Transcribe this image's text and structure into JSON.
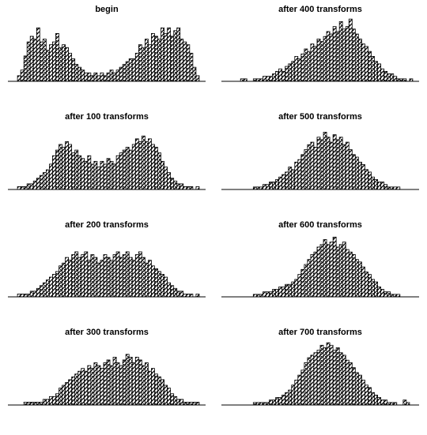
{
  "figure": {
    "layout": "4 rows x 2 columns",
    "background": "#ffffff",
    "bar_fill": "hatched black-and-white",
    "bar_stroke": "#000000"
  },
  "chart_data": [
    {
      "type": "bar",
      "title": "begin",
      "x": [
        3,
        4,
        5,
        6,
        7,
        8,
        9,
        10,
        11,
        12,
        13,
        14,
        15,
        16,
        17,
        18,
        19,
        20,
        21,
        22,
        23,
        24,
        25,
        26,
        27,
        28,
        29,
        30,
        31,
        32,
        33,
        34,
        35,
        36,
        37,
        38,
        39,
        40,
        41,
        42,
        43,
        44,
        45,
        46,
        47,
        48,
        49,
        50,
        51,
        52,
        53,
        54,
        55,
        56,
        57,
        58,
        59
      ],
      "values": [
        2,
        4,
        9,
        14,
        16,
        15,
        19,
        14,
        15,
        11,
        13,
        14,
        17,
        12,
        13,
        12,
        10,
        8,
        6,
        5,
        4,
        3,
        3,
        2,
        3,
        2,
        3,
        2,
        3,
        4,
        3,
        4,
        5,
        6,
        7,
        8,
        8,
        10,
        13,
        12,
        15,
        13,
        17,
        16,
        15,
        19,
        17,
        19,
        16,
        18,
        19,
        15,
        14,
        13,
        10,
        5,
        2
      ],
      "ylim": [
        0,
        23
      ]
    },
    {
      "type": "bar",
      "title": "after 400 transforms",
      "x": [
        6,
        7,
        8,
        9,
        10,
        11,
        12,
        13,
        14,
        15,
        16,
        17,
        18,
        19,
        20,
        21,
        22,
        23,
        24,
        25,
        26,
        27,
        28,
        29,
        30,
        31,
        32,
        33,
        34,
        35,
        36,
        37,
        38,
        39,
        40,
        41,
        42,
        43,
        44,
        45,
        46,
        47,
        48,
        49,
        50,
        51,
        52,
        53,
        54,
        55,
        56,
        57,
        58,
        59
      ],
      "values": [
        1,
        1,
        0,
        0,
        1,
        1,
        1,
        2,
        2,
        2,
        3,
        4,
        5,
        4,
        6,
        7,
        8,
        10,
        9,
        11,
        13,
        12,
        15,
        14,
        17,
        16,
        18,
        20,
        19,
        22,
        20,
        24,
        21,
        22,
        25,
        21,
        19,
        17,
        15,
        14,
        12,
        10,
        8,
        7,
        5,
        4,
        3,
        3,
        2,
        1,
        1,
        1,
        0,
        1
      ],
      "ylim": [
        0,
        26
      ]
    },
    {
      "type": "bar",
      "title": "after 100 transforms",
      "x": [
        3,
        4,
        5,
        6,
        7,
        8,
        9,
        10,
        11,
        12,
        13,
        14,
        15,
        16,
        17,
        18,
        19,
        20,
        21,
        22,
        23,
        24,
        25,
        26,
        27,
        28,
        29,
        30,
        31,
        32,
        33,
        34,
        35,
        36,
        37,
        38,
        39,
        40,
        41,
        42,
        43,
        44,
        45,
        46,
        47,
        48,
        49,
        50,
        51,
        52,
        53,
        54,
        55,
        56,
        57,
        58,
        59
      ],
      "values": [
        1,
        1,
        1,
        2,
        2,
        3,
        4,
        5,
        6,
        7,
        9,
        12,
        14,
        16,
        15,
        17,
        16,
        13,
        14,
        12,
        11,
        10,
        12,
        9,
        10,
        8,
        10,
        9,
        11,
        10,
        9,
        12,
        13,
        14,
        15,
        14,
        16,
        18,
        17,
        19,
        17,
        18,
        16,
        15,
        13,
        10,
        8,
        6,
        4,
        3,
        2,
        2,
        1,
        1,
        1,
        0,
        1
      ],
      "ylim": [
        0,
        23
      ]
    },
    {
      "type": "bar",
      "title": "after 500 transforms",
      "x": [
        10,
        11,
        12,
        13,
        14,
        15,
        16,
        17,
        18,
        19,
        20,
        21,
        22,
        23,
        24,
        25,
        26,
        27,
        28,
        29,
        30,
        31,
        32,
        33,
        34,
        35,
        36,
        37,
        38,
        39,
        40,
        41,
        42,
        43,
        44,
        45,
        46,
        47,
        48,
        49,
        50,
        51,
        52,
        53,
        54,
        55
      ],
      "values": [
        1,
        1,
        1,
        2,
        2,
        3,
        3,
        4,
        5,
        6,
        7,
        9,
        8,
        11,
        12,
        14,
        16,
        18,
        19,
        17,
        21,
        20,
        23,
        21,
        19,
        22,
        20,
        21,
        18,
        19,
        16,
        14,
        13,
        11,
        10,
        8,
        7,
        5,
        4,
        3,
        3,
        2,
        1,
        1,
        1,
        1
      ],
      "ylim": [
        0,
        26
      ]
    },
    {
      "type": "bar",
      "title": "after 200 transforms",
      "x": [
        3,
        4,
        5,
        6,
        7,
        8,
        9,
        10,
        11,
        12,
        13,
        14,
        15,
        16,
        17,
        18,
        19,
        20,
        21,
        22,
        23,
        24,
        25,
        26,
        27,
        28,
        29,
        30,
        31,
        32,
        33,
        34,
        35,
        36,
        37,
        38,
        39,
        40,
        41,
        42,
        43,
        44,
        45,
        46,
        47,
        48,
        49,
        50,
        51,
        52,
        53,
        54,
        55,
        56,
        57,
        58,
        59
      ],
      "values": [
        1,
        1,
        1,
        1,
        2,
        2,
        3,
        4,
        5,
        6,
        7,
        8,
        9,
        11,
        12,
        14,
        13,
        15,
        16,
        14,
        15,
        16,
        13,
        15,
        14,
        12,
        13,
        15,
        14,
        13,
        15,
        16,
        14,
        15,
        16,
        14,
        13,
        15,
        16,
        14,
        12,
        13,
        11,
        10,
        9,
        8,
        7,
        5,
        4,
        3,
        2,
        2,
        1,
        1,
        1,
        0,
        1
      ],
      "ylim": [
        0,
        23
      ]
    },
    {
      "type": "bar",
      "title": "after 600 transforms",
      "x": [
        10,
        11,
        12,
        13,
        14,
        15,
        16,
        17,
        18,
        19,
        20,
        21,
        22,
        23,
        24,
        25,
        26,
        27,
        28,
        29,
        30,
        31,
        32,
        33,
        34,
        35,
        36,
        37,
        38,
        39,
        40,
        41,
        42,
        43,
        44,
        45,
        46,
        47,
        48,
        49,
        50,
        51,
        52,
        53,
        54,
        55
      ],
      "values": [
        1,
        1,
        1,
        2,
        2,
        2,
        3,
        3,
        4,
        4,
        5,
        5,
        6,
        7,
        9,
        11,
        13,
        15,
        17,
        18,
        20,
        21,
        23,
        21,
        22,
        24,
        20,
        21,
        22,
        19,
        18,
        17,
        15,
        14,
        12,
        10,
        9,
        7,
        6,
        4,
        3,
        2,
        2,
        1,
        1,
        1
      ],
      "ylim": [
        0,
        26
      ]
    },
    {
      "type": "bar",
      "title": "after 300 transforms",
      "x": [
        5,
        6,
        7,
        8,
        9,
        10,
        11,
        12,
        13,
        14,
        15,
        16,
        17,
        18,
        19,
        20,
        21,
        22,
        23,
        24,
        25,
        26,
        27,
        28,
        29,
        30,
        31,
        32,
        33,
        34,
        35,
        36,
        37,
        38,
        39,
        40,
        41,
        42,
        43,
        44,
        45,
        46,
        47,
        48,
        49,
        50,
        51,
        52,
        53,
        54,
        55,
        56,
        57,
        58,
        59
      ],
      "values": [
        1,
        1,
        1,
        1,
        1,
        1,
        2,
        2,
        3,
        3,
        4,
        6,
        7,
        8,
        9,
        10,
        11,
        12,
        13,
        12,
        14,
        13,
        15,
        14,
        13,
        15,
        16,
        14,
        17,
        15,
        14,
        16,
        18,
        17,
        15,
        17,
        16,
        14,
        15,
        12,
        13,
        11,
        10,
        9,
        7,
        6,
        4,
        3,
        2,
        2,
        1,
        1,
        1,
        1,
        1
      ],
      "ylim": [
        0,
        23
      ]
    },
    {
      "type": "bar",
      "title": "after 700 transforms",
      "x": [
        10,
        11,
        12,
        13,
        14,
        15,
        16,
        17,
        18,
        19,
        20,
        21,
        22,
        23,
        24,
        25,
        26,
        27,
        28,
        29,
        30,
        31,
        32,
        33,
        34,
        35,
        36,
        37,
        38,
        39,
        40,
        41,
        42,
        43,
        44,
        45,
        46,
        47,
        48,
        49,
        50,
        51,
        52,
        53,
        54,
        55,
        56,
        57,
        58
      ],
      "values": [
        1,
        1,
        1,
        1,
        1,
        2,
        2,
        3,
        3,
        4,
        5,
        6,
        8,
        10,
        12,
        14,
        17,
        19,
        20,
        21,
        22,
        24,
        23,
        25,
        24,
        22,
        23,
        21,
        20,
        18,
        17,
        15,
        13,
        12,
        10,
        8,
        7,
        5,
        4,
        3,
        2,
        2,
        1,
        1,
        1,
        0,
        0,
        2,
        1
      ],
      "ylim": [
        0,
        26
      ]
    }
  ]
}
